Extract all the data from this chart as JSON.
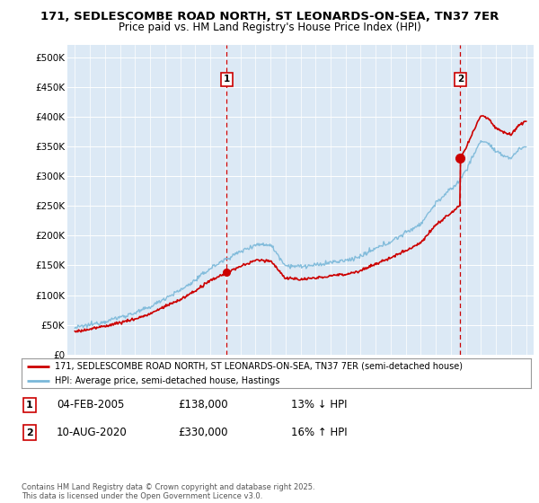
{
  "title_line1": "171, SEDLESCOMBE ROAD NORTH, ST LEONARDS-ON-SEA, TN37 7ER",
  "title_line2": "Price paid vs. HM Land Registry's House Price Index (HPI)",
  "background_color": "#dce9f5",
  "grid_color": "#ffffff",
  "hpi_color": "#7ab8d9",
  "price_color": "#cc0000",
  "ylim": [
    0,
    520000
  ],
  "yticks": [
    0,
    50000,
    100000,
    150000,
    200000,
    250000,
    300000,
    350000,
    400000,
    450000,
    500000
  ],
  "ytick_labels": [
    "£0",
    "£50K",
    "£100K",
    "£150K",
    "£200K",
    "£250K",
    "£300K",
    "£350K",
    "£400K",
    "£450K",
    "£500K"
  ],
  "xlim_start": 1994.5,
  "xlim_end": 2025.5,
  "xticks": [
    1995,
    1996,
    1997,
    1998,
    1999,
    2000,
    2001,
    2002,
    2003,
    2004,
    2005,
    2006,
    2007,
    2008,
    2009,
    2010,
    2011,
    2012,
    2013,
    2014,
    2015,
    2016,
    2017,
    2018,
    2019,
    2020,
    2021,
    2022,
    2023,
    2024,
    2025
  ],
  "ann1_x": 2005.1,
  "ann1_price_val": 138000,
  "ann2_x": 2020.62,
  "ann2_price_val": 330000,
  "legend_line1": "171, SEDLESCOMBE ROAD NORTH, ST LEONARDS-ON-SEA, TN37 7ER (semi-detached house)",
  "legend_line2": "HPI: Average price, semi-detached house, Hastings",
  "footer": "Contains HM Land Registry data © Crown copyright and database right 2025.\nThis data is licensed under the Open Government Licence v3.0.",
  "table_rows": [
    {
      "num": "1",
      "date": "04-FEB-2005",
      "price": "£138,000",
      "hpi": "13% ↓ HPI"
    },
    {
      "num": "2",
      "date": "10-AUG-2020",
      "price": "£330,000",
      "hpi": "16% ↑ HPI"
    }
  ]
}
